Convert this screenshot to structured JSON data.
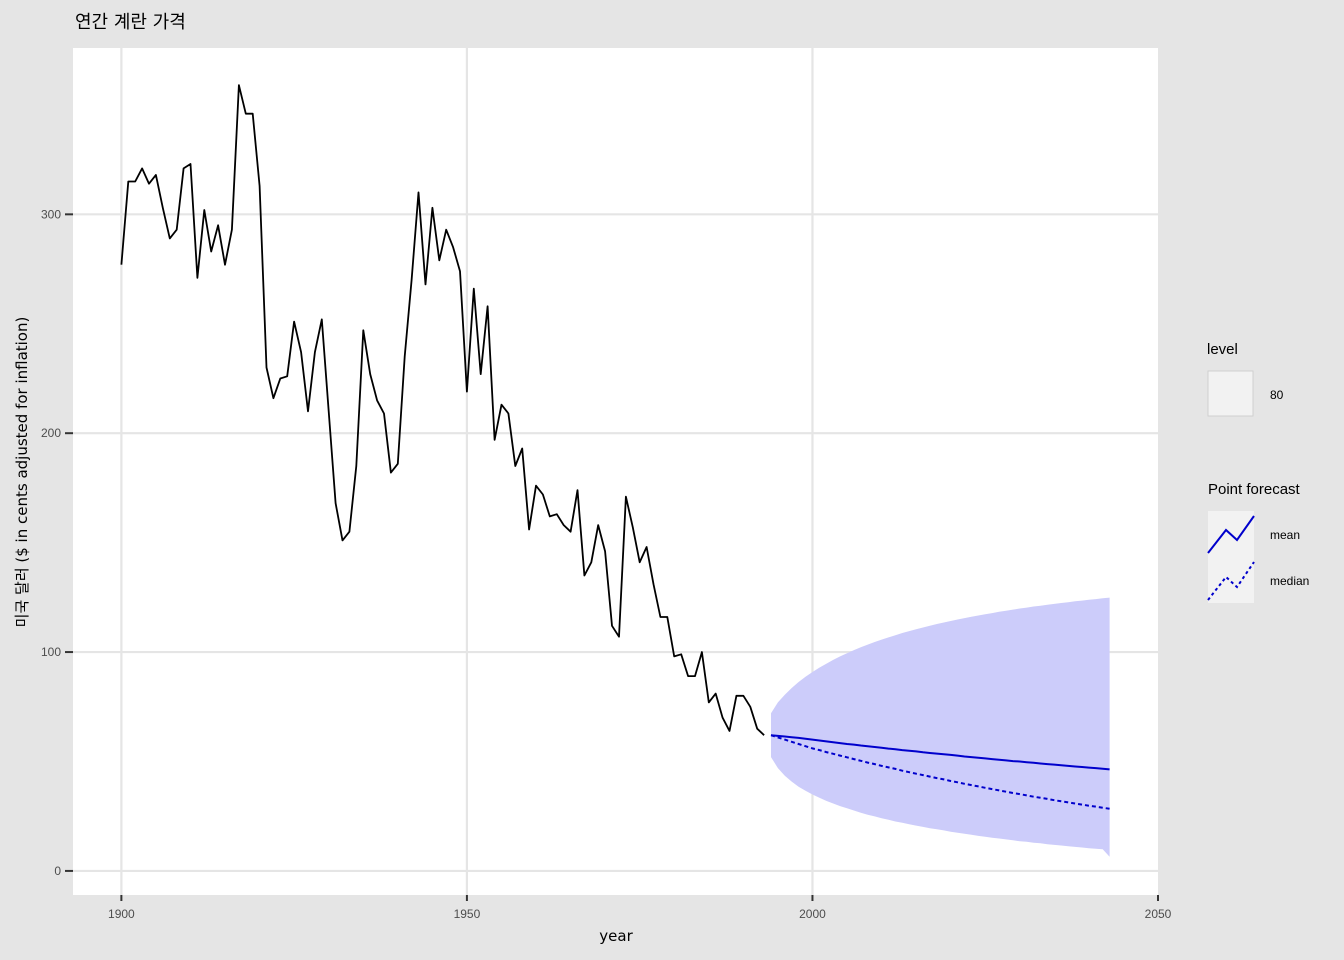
{
  "chart_data": {
    "type": "line",
    "title": "연간 계란 가격",
    "xlabel": "year",
    "ylabel": "미국 달러 ($ in cents adjusted for inflation)",
    "xlim": [
      1893,
      2050
    ],
    "ylim": [
      -11,
      376
    ],
    "x_ticks": [
      1900,
      1950,
      2000,
      2050
    ],
    "y_ticks": [
      0,
      100,
      200,
      300
    ],
    "grid": true,
    "legend_position": "right",
    "legend": {
      "level_title": "level",
      "level_items": [
        "80"
      ],
      "forecast_title": "Point forecast",
      "forecast_items": [
        "mean",
        "median"
      ]
    },
    "colors": {
      "panel_background": "#e5e5e5",
      "plot_area": "#ffffff",
      "gridline": "#e5e5e5",
      "history_line": "#000000",
      "forecast_line": "#0000cc",
      "interval_fill": "#ccccfa"
    },
    "series": [
      {
        "values_x": [
          1900,
          1901,
          1902,
          1903,
          1904,
          1905,
          1906,
          1907,
          1908,
          1909,
          1910,
          1911,
          1912,
          1913,
          1914,
          1915,
          1916,
          1917,
          1918,
          1919,
          1920,
          1921,
          1922,
          1923,
          1924,
          1925,
          1926,
          1927,
          1928,
          1929,
          1930,
          1931,
          1932,
          1933,
          1934,
          1935,
          1936,
          1937,
          1938,
          1939,
          1940,
          1941,
          1942,
          1943,
          1944,
          1945,
          1946,
          1947,
          1948,
          1949,
          1950,
          1951,
          1952,
          1953,
          1954,
          1955,
          1956,
          1957,
          1958,
          1959,
          1960,
          1961,
          1962,
          1963,
          1964,
          1965,
          1966,
          1967,
          1968,
          1969,
          1970,
          1971,
          1972,
          1973,
          1974,
          1975,
          1976,
          1977,
          1978,
          1979,
          1980,
          1981,
          1982,
          1983,
          1984,
          1985,
          1986,
          1987,
          1988,
          1989,
          1990,
          1991,
          1992,
          1993
        ],
        "values_y": [
          277,
          315,
          315,
          321,
          314,
          318,
          303,
          289,
          293,
          321,
          323,
          271,
          302,
          283,
          295,
          277,
          293,
          359,
          346,
          346,
          313,
          230,
          216,
          225,
          226,
          251,
          237,
          210,
          237,
          252,
          210,
          168,
          151,
          155,
          185,
          247,
          227,
          215,
          209,
          182,
          186,
          235,
          270,
          310,
          268,
          303,
          279,
          293,
          285,
          274,
          219,
          266,
          227,
          258,
          197,
          213,
          209,
          185,
          193,
          156,
          176,
          172,
          162,
          163,
          158,
          155,
          174,
          135,
          141,
          158,
          146,
          112,
          107,
          171,
          157,
          141,
          148,
          131,
          116,
          116,
          98,
          99,
          89,
          89,
          100,
          77,
          81,
          70,
          64,
          80,
          80,
          75,
          65,
          62
        ]
      },
      {
        "name": "mean",
        "values_x": [
          1994,
          1995,
          1996,
          1997,
          1998,
          1999,
          2000,
          2001,
          2002,
          2003,
          2004,
          2005,
          2006,
          2007,
          2008,
          2009,
          2010,
          2011,
          2012,
          2013,
          2014,
          2015,
          2016,
          2017,
          2018,
          2019,
          2020,
          2021,
          2022,
          2023,
          2024,
          2025,
          2026,
          2027,
          2028,
          2029,
          2030,
          2031,
          2032,
          2033,
          2034,
          2035,
          2036,
          2037,
          2038,
          2039,
          2040,
          2041,
          2042,
          2043
        ],
        "values_y": [
          62,
          61.7,
          61.4,
          61.1,
          60.8,
          60.4,
          60.0,
          59.6,
          59.2,
          58.8,
          58.4,
          58.0,
          57.7,
          57.3,
          57.0,
          56.6,
          56.3,
          55.9,
          55.6,
          55.2,
          54.9,
          54.6,
          54.2,
          53.9,
          53.6,
          53.3,
          53.0,
          52.7,
          52.3,
          52.0,
          51.7,
          51.4,
          51.1,
          50.8,
          50.5,
          50.2,
          50.0,
          49.7,
          49.4,
          49.1,
          48.8,
          48.6,
          48.3,
          48.0,
          47.7,
          47.5,
          47.2,
          47.0,
          46.7,
          46.4
        ]
      },
      {
        "name": "median",
        "values_x": [
          1994,
          1995,
          1996,
          1997,
          1998,
          1999,
          2000,
          2001,
          2002,
          2003,
          2004,
          2005,
          2006,
          2007,
          2008,
          2009,
          2010,
          2011,
          2012,
          2013,
          2014,
          2015,
          2016,
          2017,
          2018,
          2019,
          2020,
          2021,
          2022,
          2023,
          2024,
          2025,
          2026,
          2027,
          2028,
          2029,
          2030,
          2031,
          2032,
          2033,
          2034,
          2035,
          2036,
          2037,
          2038,
          2039,
          2040,
          2041,
          2042,
          2043
        ],
        "values_y": [
          62,
          61.0,
          60.0,
          59.0,
          58.0,
          57.0,
          56.0,
          55.2,
          54.3,
          53.5,
          52.7,
          51.9,
          51.1,
          50.3,
          49.5,
          48.8,
          48.0,
          47.3,
          46.6,
          45.8,
          45.1,
          44.4,
          43.8,
          43.1,
          42.4,
          41.8,
          41.1,
          40.5,
          39.8,
          39.2,
          38.6,
          38.0,
          37.4,
          36.8,
          36.2,
          35.6,
          35.1,
          34.5,
          33.9,
          33.4,
          32.9,
          32.3,
          31.8,
          31.3,
          30.8,
          30.3,
          29.8,
          29.4,
          28.9,
          28.4
        ]
      }
    ],
    "interval_80": {
      "x": [
        1994,
        1995,
        1996,
        1997,
        1998,
        1999,
        2000,
        2001,
        2002,
        2003,
        2004,
        2005,
        2006,
        2007,
        2008,
        2009,
        2010,
        2011,
        2012,
        2013,
        2014,
        2015,
        2016,
        2017,
        2018,
        2019,
        2020,
        2021,
        2022,
        2023,
        2024,
        2025,
        2026,
        2027,
        2028,
        2029,
        2030,
        2031,
        2032,
        2033,
        2034,
        2035,
        2036,
        2037,
        2038,
        2039,
        2040,
        2041,
        2042,
        2043
      ],
      "lower": [
        52,
        47,
        43.5,
        40.8,
        38.5,
        36.6,
        34.9,
        33.4,
        32.0,
        30.8,
        29.6,
        28.6,
        27.6,
        26.6,
        25.7,
        24.9,
        24.1,
        23.4,
        22.6,
        22.0,
        21.3,
        20.7,
        20.1,
        19.5,
        19.0,
        18.5,
        17.9,
        17.4,
        17.0,
        16.5,
        16.0,
        15.6,
        15.2,
        14.8,
        14.4,
        14.0,
        13.6,
        13.3,
        12.9,
        12.6,
        12.2,
        11.9,
        11.6,
        11.3,
        11.0,
        10.7,
        10.4,
        10.1,
        9.9,
        6.5
      ],
      "upper": [
        72,
        77,
        80.5,
        83.6,
        86.3,
        88.7,
        90.9,
        92.9,
        94.7,
        96.4,
        98.0,
        99.5,
        100.9,
        102.2,
        103.4,
        104.6,
        105.7,
        106.7,
        107.7,
        108.7,
        109.6,
        110.4,
        111.2,
        112.0,
        112.8,
        113.5,
        114.2,
        114.9,
        115.5,
        116.1,
        116.7,
        117.3,
        117.8,
        118.4,
        118.9,
        119.4,
        119.9,
        120.3,
        120.8,
        121.2,
        121.6,
        122.0,
        122.4,
        122.8,
        123.2,
        123.5,
        123.9,
        124.2,
        124.6,
        124.9
      ]
    }
  }
}
